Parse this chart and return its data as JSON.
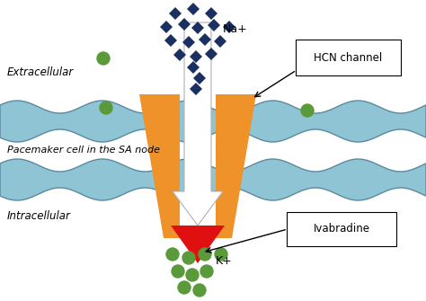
{
  "bg_color": "#ffffff",
  "membrane_color": "#8fc4d4",
  "membrane_edge_color": "#5a8aa0",
  "channel_color": "#f0922a",
  "ivabradine_color": "#e01010",
  "na_ion_color": "#1a3060",
  "k_ion_color": "#5a9a3a",
  "label_extracellular": "Extracellular",
  "label_pacemaker": "Pacemaker cell in the SA node",
  "label_intracellular": "Intracellular",
  "label_na": "Na+",
  "label_k": "K+",
  "label_hcn": "HCN channel",
  "label_ivabradine": "Ivabradine",
  "figsize": [
    4.74,
    3.35
  ],
  "dpi": 100
}
